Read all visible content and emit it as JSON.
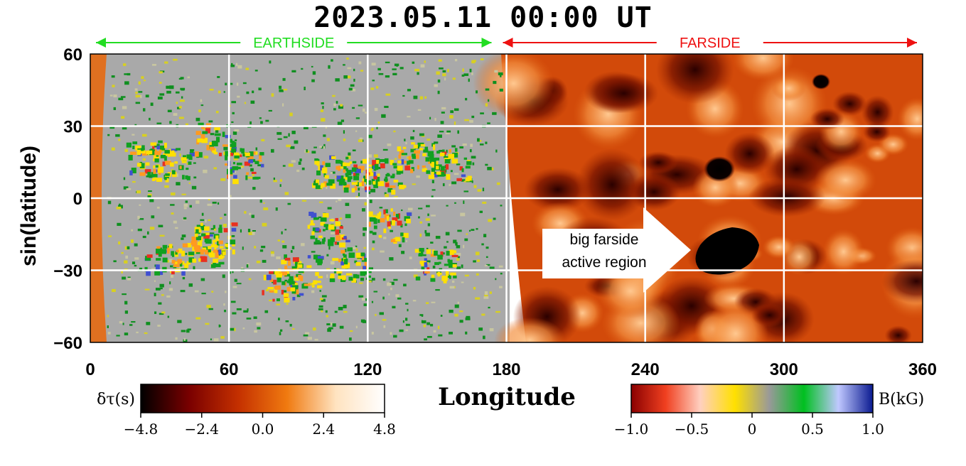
{
  "chart_data": {
    "type": "heatmap",
    "title": "2023.05.11  00:00 UT",
    "xlabel": "Longitude",
    "ylabel": "sin(latitude)",
    "xlim": [
      0,
      360
    ],
    "ylim": [
      -60,
      60
    ],
    "x_ticks": [
      "0",
      "60",
      "120",
      "180",
      "240",
      "300",
      "360"
    ],
    "y_ticks": [
      "60",
      "30",
      "0",
      "−30",
      "−60"
    ],
    "x_tick_values": [
      0,
      60,
      120,
      180,
      240,
      300,
      360
    ],
    "y_tick_values": [
      60,
      30,
      0,
      -30,
      -60
    ],
    "grid": true,
    "grid_color": "#ffffff",
    "regions": [
      {
        "label": "EARTHSIDE",
        "from": 0,
        "to": 176,
        "color": "#22dd22"
      },
      {
        "label": "FARSIDE",
        "from": 176,
        "to": 360,
        "color": "#ee1111"
      }
    ],
    "annotation": {
      "lines": [
        "big farside",
        "active region"
      ],
      "target_lon": 270,
      "target_lat": -20
    },
    "colorbars": [
      {
        "label": "δτ(s)",
        "ticks": [
          "−4.8",
          "−2.4",
          "0.0",
          "2.4",
          "4.8"
        ],
        "range": [
          -4.8,
          4.8
        ],
        "colors": [
          "#000000",
          "#7a0000",
          "#c43000",
          "#f07a10",
          "#ffe3c0",
          "#ffffff"
        ]
      },
      {
        "label": "B(kG)",
        "ticks": [
          "−1.0",
          "−0.5",
          "0",
          "0.5",
          "1.0"
        ],
        "range": [
          -1.0,
          1.0
        ],
        "colors": [
          "#8a0000",
          "#f04020",
          "#ffd0c0",
          "#ffe000",
          "#999999",
          "#00c020",
          "#c0c8ff",
          "#0a1a90"
        ]
      }
    ]
  },
  "colors": {
    "earthside_bg": "#a9a9a9",
    "farside_bg": "#d24a0a",
    "dark_spot": "#000000"
  }
}
